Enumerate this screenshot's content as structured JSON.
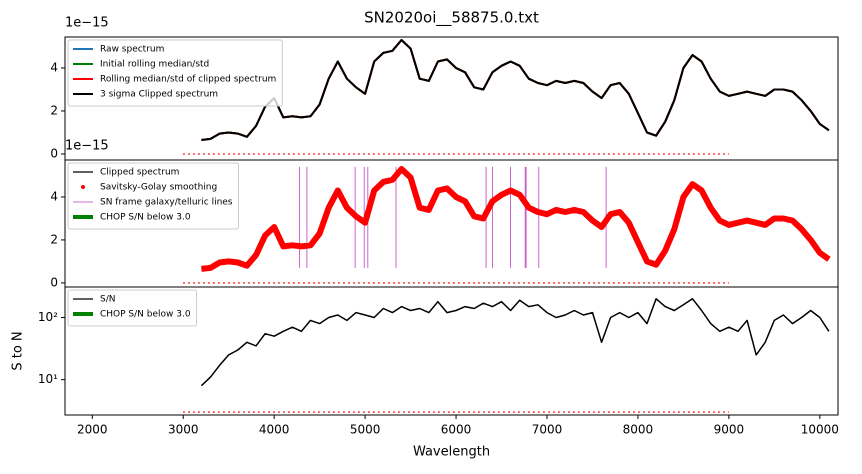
{
  "chart_data": [
    {
      "type": "line",
      "title": "SN2020oi__58875.0.txt",
      "offset_text": "1e−15",
      "xlim": [
        1700,
        10200
      ],
      "ylim": [
        -0.28,
        5.44
      ],
      "yticks": [
        0,
        2,
        4
      ],
      "legend": "upper left",
      "x": [
        3200,
        3300,
        3400,
        3500,
        3600,
        3700,
        3800,
        3900,
        4000,
        4100,
        4200,
        4300,
        4400,
        4500,
        4600,
        4700,
        4800,
        4900,
        5000,
        5100,
        5200,
        5300,
        5400,
        5500,
        5600,
        5700,
        5800,
        5900,
        6000,
        6100,
        6200,
        6300,
        6400,
        6500,
        6600,
        6700,
        6800,
        6900,
        7000,
        7100,
        7200,
        7300,
        7400,
        7500,
        7600,
        7700,
        7800,
        7900,
        8000,
        8100,
        8200,
        8300,
        8400,
        8500,
        8600,
        8700,
        8800,
        8900,
        9000,
        9100,
        9200,
        9300,
        9400,
        9500,
        9600,
        9700,
        9800,
        9900,
        10000,
        10100
      ],
      "series": [
        {
          "name": "Raw spectrum",
          "color": "#1f77b4",
          "style": "line",
          "width": 2,
          "values": [
            0.65,
            0.7,
            0.95,
            1.0,
            0.95,
            0.8,
            1.3,
            2.2,
            2.6,
            1.7,
            1.75,
            1.7,
            1.75,
            2.3,
            3.5,
            4.3,
            3.5,
            3.1,
            2.8,
            4.3,
            4.7,
            4.8,
            5.3,
            4.9,
            3.5,
            3.4,
            4.3,
            4.4,
            4.0,
            3.8,
            3.1,
            3.0,
            3.8,
            4.1,
            4.3,
            4.1,
            3.5,
            3.3,
            3.2,
            3.4,
            3.3,
            3.4,
            3.3,
            2.9,
            2.6,
            3.2,
            3.3,
            2.8,
            1.9,
            1.0,
            0.85,
            1.5,
            2.5,
            4.0,
            4.6,
            4.3,
            3.5,
            2.9,
            2.7,
            2.8,
            2.9,
            2.8,
            2.7,
            3.0,
            3.0,
            2.9,
            2.5,
            2.0,
            1.4,
            1.1
          ]
        },
        {
          "name": "Initial rolling median/std",
          "color": "green",
          "style": "line",
          "width": 2,
          "values": [
            0.65,
            0.7,
            0.95,
            1.0,
            0.95,
            0.8,
            1.3,
            2.2,
            2.6,
            1.7,
            1.75,
            1.7,
            1.75,
            2.3,
            3.5,
            4.3,
            3.5,
            3.1,
            2.8,
            4.3,
            4.7,
            4.8,
            5.3,
            4.9,
            3.5,
            3.4,
            4.3,
            4.4,
            4.0,
            3.8,
            3.1,
            3.0,
            3.8,
            4.1,
            4.3,
            4.1,
            3.5,
            3.3,
            3.2,
            3.4,
            3.3,
            3.4,
            3.3,
            2.9,
            2.6,
            3.2,
            3.3,
            2.8,
            1.9,
            1.0,
            0.85,
            1.5,
            2.5,
            4.0,
            4.6,
            4.3,
            3.5,
            2.9,
            2.7,
            2.8,
            2.9,
            2.8,
            2.7,
            3.0,
            3.0,
            2.9,
            2.5,
            2.0,
            1.4,
            1.1
          ]
        },
        {
          "name": "Rolling median/std of clipped spectrum",
          "color": "red",
          "style": "line",
          "width": 2,
          "values": [
            0.65,
            0.7,
            0.95,
            1.0,
            0.95,
            0.8,
            1.3,
            2.2,
            2.6,
            1.7,
            1.75,
            1.7,
            1.75,
            2.3,
            3.5,
            4.3,
            3.5,
            3.1,
            2.8,
            4.3,
            4.7,
            4.8,
            5.3,
            4.9,
            3.5,
            3.4,
            4.3,
            4.4,
            4.0,
            3.8,
            3.1,
            3.0,
            3.8,
            4.1,
            4.3,
            4.1,
            3.5,
            3.3,
            3.2,
            3.4,
            3.3,
            3.4,
            3.3,
            2.9,
            2.6,
            3.2,
            3.3,
            2.8,
            1.9,
            1.0,
            0.85,
            1.5,
            2.5,
            4.0,
            4.6,
            4.3,
            3.5,
            2.9,
            2.7,
            2.8,
            2.9,
            2.8,
            2.7,
            3.0,
            3.0,
            2.9,
            2.5,
            2.0,
            1.4,
            1.1
          ]
        },
        {
          "name": "3 sigma Clipped spectrum",
          "color": "black",
          "style": "line",
          "width": 2,
          "values": [
            0.65,
            0.7,
            0.95,
            1.0,
            0.95,
            0.8,
            1.3,
            2.2,
            2.6,
            1.7,
            1.75,
            1.7,
            1.75,
            2.3,
            3.5,
            4.3,
            3.5,
            3.1,
            2.8,
            4.3,
            4.7,
            4.8,
            5.3,
            4.9,
            3.5,
            3.4,
            4.3,
            4.4,
            4.0,
            3.8,
            3.1,
            3.0,
            3.8,
            4.1,
            4.3,
            4.1,
            3.5,
            3.3,
            3.2,
            3.4,
            3.3,
            3.4,
            3.3,
            2.9,
            2.6,
            3.2,
            3.3,
            2.8,
            1.9,
            1.0,
            0.85,
            1.5,
            2.5,
            4.0,
            4.6,
            4.3,
            3.5,
            2.9,
            2.7,
            2.8,
            2.9,
            2.8,
            2.7,
            3.0,
            3.0,
            2.9,
            2.5,
            2.0,
            1.4,
            1.1
          ]
        }
      ],
      "threshold": {
        "color": "red",
        "x": [
          3000,
          9000
        ],
        "y": 0
      }
    },
    {
      "type": "line",
      "offset_text": "1e−15",
      "xlim": [
        1700,
        10200
      ],
      "ylim": [
        -0.19,
        5.72
      ],
      "yticks": [
        0,
        2,
        4
      ],
      "legend": "upper left",
      "x": [
        3200,
        3300,
        3400,
        3500,
        3600,
        3700,
        3800,
        3900,
        4000,
        4100,
        4200,
        4300,
        4400,
        4500,
        4600,
        4700,
        4800,
        4900,
        5000,
        5100,
        5200,
        5300,
        5400,
        5500,
        5600,
        5700,
        5800,
        5900,
        6000,
        6100,
        6200,
        6300,
        6400,
        6500,
        6600,
        6700,
        6800,
        6900,
        7000,
        7100,
        7200,
        7300,
        7400,
        7500,
        7600,
        7700,
        7800,
        7900,
        8000,
        8100,
        8200,
        8300,
        8400,
        8500,
        8600,
        8700,
        8800,
        8900,
        9000,
        9100,
        9200,
        9300,
        9400,
        9500,
        9600,
        9700,
        9800,
        9900,
        10000,
        10100
      ],
      "series": [
        {
          "name": "Clipped spectrum",
          "color": "black",
          "style": "line",
          "width": 1,
          "values": [
            0.65,
            0.7,
            0.95,
            1.0,
            0.95,
            0.8,
            1.3,
            2.2,
            2.6,
            1.7,
            1.75,
            1.7,
            1.75,
            2.3,
            3.5,
            4.3,
            3.5,
            3.1,
            2.8,
            4.3,
            4.7,
            4.8,
            5.3,
            4.9,
            3.5,
            3.4,
            4.3,
            4.4,
            4.0,
            3.8,
            3.1,
            3.0,
            3.8,
            4.1,
            4.3,
            4.1,
            3.5,
            3.3,
            3.2,
            3.4,
            3.3,
            3.4,
            3.3,
            2.9,
            2.6,
            3.2,
            3.3,
            2.8,
            1.9,
            1.0,
            0.85,
            1.5,
            2.5,
            4.0,
            4.6,
            4.3,
            3.5,
            2.9,
            2.7,
            2.8,
            2.9,
            2.8,
            2.7,
            3.0,
            3.0,
            2.9,
            2.5,
            2.0,
            1.4,
            1.1
          ]
        },
        {
          "name": "Savitsky-Golay smoothing",
          "color": "red",
          "style": "thick",
          "width": 6,
          "values": [
            0.65,
            0.7,
            0.95,
            1.0,
            0.95,
            0.8,
            1.3,
            2.2,
            2.6,
            1.7,
            1.75,
            1.7,
            1.75,
            2.3,
            3.5,
            4.3,
            3.5,
            3.1,
            2.8,
            4.3,
            4.7,
            4.8,
            5.3,
            4.9,
            3.5,
            3.4,
            4.3,
            4.4,
            4.0,
            3.8,
            3.1,
            3.0,
            3.8,
            4.1,
            4.3,
            4.1,
            3.5,
            3.3,
            3.2,
            3.4,
            3.3,
            3.4,
            3.3,
            2.9,
            2.6,
            3.2,
            3.3,
            2.8,
            1.9,
            1.0,
            0.85,
            1.5,
            2.5,
            4.0,
            4.6,
            4.3,
            3.5,
            2.9,
            2.7,
            2.8,
            2.9,
            2.8,
            2.7,
            3.0,
            3.0,
            2.9,
            2.5,
            2.0,
            1.4,
            1.1
          ]
        }
      ],
      "vlines": {
        "name": "SN frame galaxy/telluric lines",
        "color": "#bf3fbf",
        "ymin": 0.7,
        "ymax": 5.4,
        "x": [
          4280,
          4360,
          4890,
          4990,
          5030,
          5340,
          6330,
          6400,
          6600,
          6760,
          6770,
          6910,
          7650
        ]
      },
      "chop": {
        "name": "CHOP S/N below 3.0",
        "color": "green"
      },
      "threshold": {
        "color": "red",
        "x": [
          3000,
          9000
        ],
        "y": 0
      }
    },
    {
      "type": "line",
      "log_y": true,
      "ylabel": "S to N",
      "xlabel": "Wavelength",
      "xlim": [
        1700,
        10200
      ],
      "xticks": [
        2000,
        3000,
        4000,
        5000,
        6000,
        7000,
        8000,
        9000,
        10000
      ],
      "ylim": [
        2.7,
        310
      ],
      "yticks": [
        {
          "value": 10,
          "label": "10¹"
        },
        {
          "value": 100,
          "label": "10²"
        }
      ],
      "legend": "upper left",
      "x": [
        3200,
        3300,
        3400,
        3500,
        3600,
        3700,
        3800,
        3900,
        4000,
        4100,
        4200,
        4300,
        4400,
        4500,
        4600,
        4700,
        4800,
        4900,
        5000,
        5100,
        5200,
        5300,
        5400,
        5500,
        5600,
        5700,
        5800,
        5900,
        6000,
        6100,
        6200,
        6300,
        6400,
        6500,
        6600,
        6700,
        6800,
        6900,
        7000,
        7100,
        7200,
        7300,
        7400,
        7500,
        7600,
        7700,
        7800,
        7900,
        8000,
        8100,
        8200,
        8300,
        8400,
        8500,
        8600,
        8700,
        8800,
        8900,
        9000,
        9100,
        9200,
        9300,
        9400,
        9500,
        9600,
        9700,
        9800,
        9900,
        10000,
        10100
      ],
      "series": [
        {
          "name": "S/N",
          "color": "black",
          "style": "line",
          "width": 1.5,
          "values": [
            8,
            11,
            17,
            25,
            30,
            40,
            35,
            55,
            50,
            60,
            70,
            60,
            90,
            80,
            100,
            110,
            90,
            120,
            110,
            100,
            140,
            120,
            150,
            130,
            140,
            120,
            180,
            120,
            130,
            150,
            140,
            170,
            150,
            180,
            130,
            190,
            150,
            160,
            120,
            100,
            110,
            130,
            110,
            120,
            40,
            100,
            120,
            100,
            120,
            80,
            200,
            150,
            130,
            160,
            200,
            130,
            80,
            60,
            70,
            60,
            90,
            25,
            40,
            90,
            110,
            80,
            100,
            130,
            100,
            60
          ]
        }
      ],
      "chop": {
        "name": "CHOP S/N below 3.0",
        "color": "green"
      },
      "threshold": {
        "color": "red",
        "x": [
          3000,
          9000
        ],
        "y": 3
      }
    }
  ]
}
